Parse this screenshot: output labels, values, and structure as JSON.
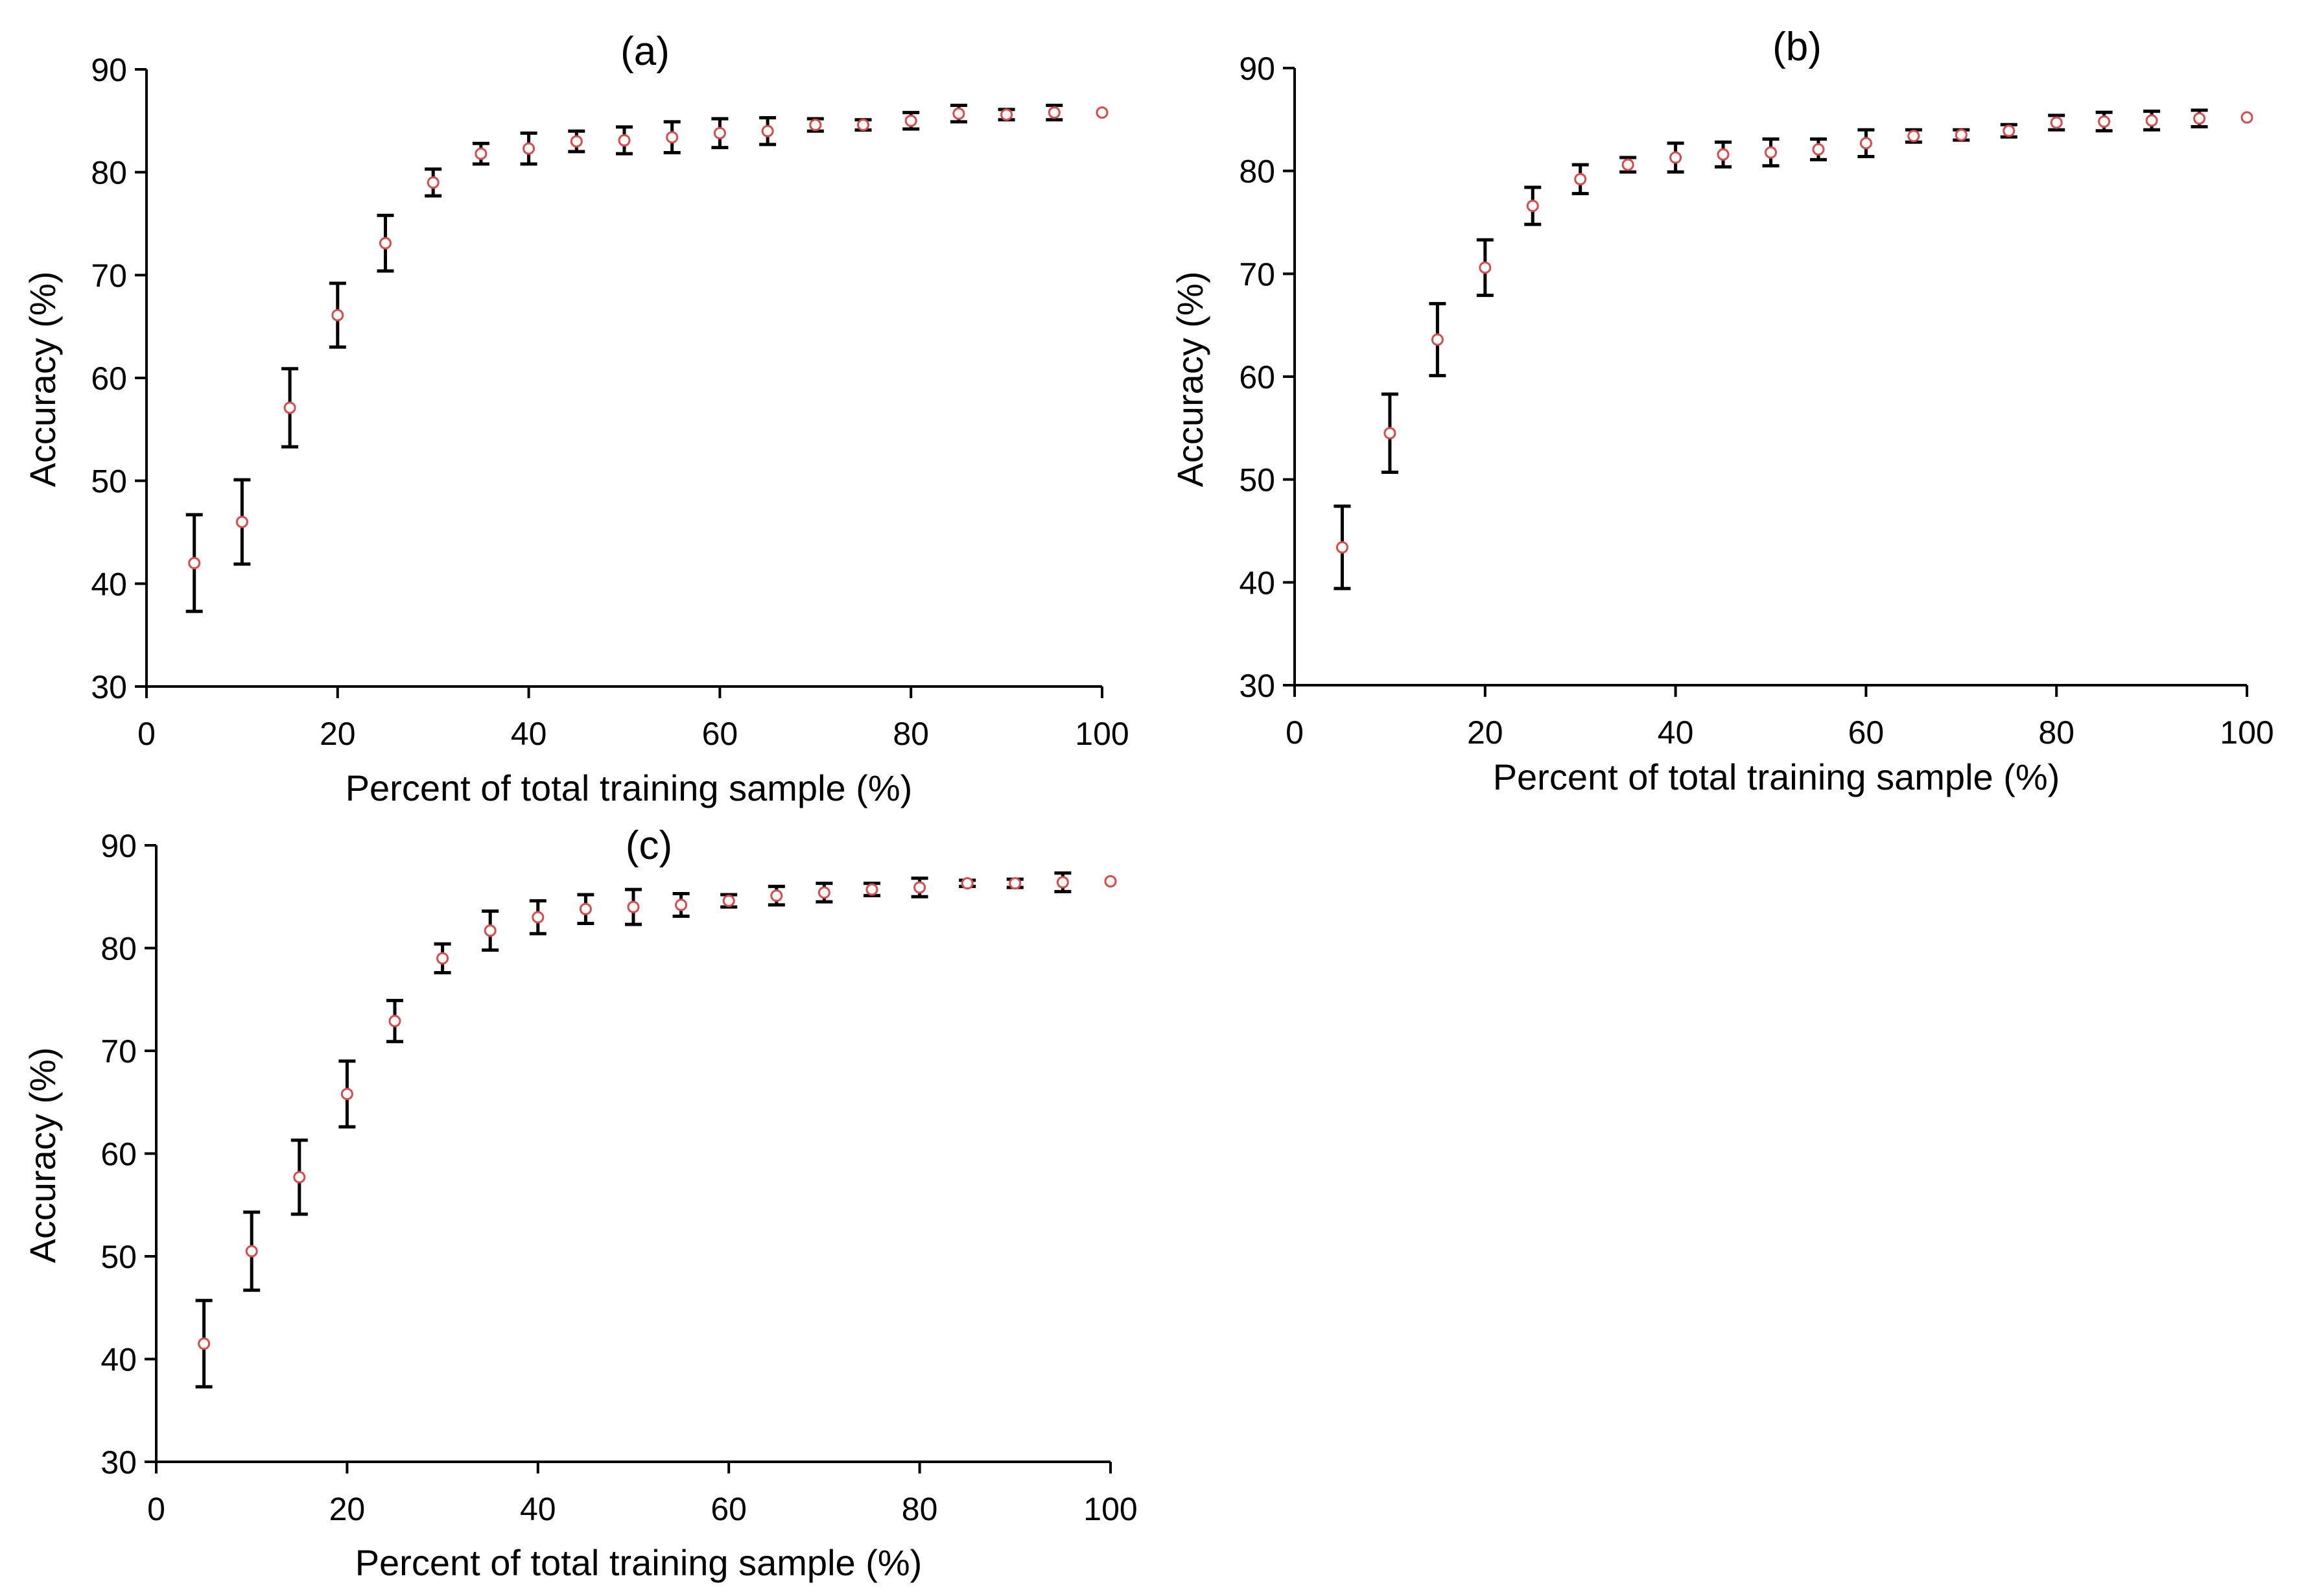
{
  "chart_data": [
    {
      "type": "scatter",
      "panel": "a",
      "title": "(a)",
      "xlabel": "Percent of total training sample (%)",
      "ylabel": "Accuracy (%)",
      "xlim": [
        0,
        100
      ],
      "ylim": [
        30,
        90
      ],
      "xticks": [
        0,
        20,
        40,
        60,
        80,
        100
      ],
      "yticks": [
        30,
        40,
        50,
        60,
        70,
        80,
        90
      ],
      "x": [
        5,
        10,
        15,
        20,
        25,
        30,
        35,
        40,
        45,
        50,
        55,
        60,
        65,
        70,
        75,
        80,
        85,
        90,
        95,
        100
      ],
      "y": [
        42.0,
        46.0,
        57.1,
        66.1,
        73.1,
        79.0,
        81.8,
        82.3,
        83.0,
        83.1,
        83.4,
        83.8,
        84.0,
        84.6,
        84.6,
        85.0,
        85.7,
        85.6,
        85.8,
        85.8
      ],
      "err": [
        4.7,
        4.1,
        3.8,
        3.1,
        2.7,
        1.3,
        1.0,
        1.5,
        1.0,
        1.3,
        1.5,
        1.4,
        1.3,
        0.6,
        0.5,
        0.8,
        0.8,
        0.5,
        0.7,
        0
      ]
    },
    {
      "type": "scatter",
      "panel": "b",
      "title": "(b)",
      "xlabel": "Percent of total training sample (%)",
      "ylabel": "Accuracy (%)",
      "xlim": [
        0,
        100
      ],
      "ylim": [
        30,
        90
      ],
      "xticks": [
        0,
        20,
        40,
        60,
        80,
        100
      ],
      "yticks": [
        30,
        40,
        50,
        60,
        70,
        80,
        90
      ],
      "x": [
        5,
        10,
        15,
        20,
        25,
        30,
        35,
        40,
        45,
        50,
        55,
        60,
        65,
        70,
        75,
        80,
        85,
        90,
        95,
        100
      ],
      "y": [
        43.4,
        54.5,
        63.6,
        70.6,
        76.6,
        79.2,
        80.6,
        81.3,
        81.6,
        81.8,
        82.1,
        82.7,
        83.4,
        83.5,
        83.9,
        84.7,
        84.8,
        84.9,
        85.1,
        85.2
      ],
      "err": [
        4.0,
        3.8,
        3.5,
        2.7,
        1.8,
        1.4,
        0.7,
        1.4,
        1.2,
        1.3,
        1.0,
        1.3,
        0.6,
        0.5,
        0.6,
        0.7,
        0.9,
        0.9,
        0.8,
        0
      ]
    },
    {
      "type": "scatter",
      "panel": "c",
      "title": "(c)",
      "xlabel": "Percent of total training sample (%)",
      "ylabel": "Accuracy (%)",
      "xlim": [
        0,
        100
      ],
      "ylim": [
        30,
        90
      ],
      "xticks": [
        0,
        20,
        40,
        60,
        80,
        100
      ],
      "yticks": [
        30,
        40,
        50,
        60,
        70,
        80,
        90
      ],
      "x": [
        5,
        10,
        15,
        20,
        25,
        30,
        35,
        40,
        45,
        50,
        55,
        60,
        65,
        70,
        75,
        80,
        85,
        90,
        95,
        100
      ],
      "y": [
        41.5,
        50.5,
        57.7,
        65.8,
        72.9,
        79.0,
        81.7,
        83.0,
        83.8,
        84.0,
        84.2,
        84.6,
        85.1,
        85.4,
        85.7,
        85.9,
        86.3,
        86.3,
        86.4,
        86.5
      ],
      "err": [
        4.2,
        3.8,
        3.6,
        3.2,
        2.0,
        1.4,
        1.9,
        1.6,
        1.4,
        1.7,
        1.1,
        0.6,
        0.9,
        0.9,
        0.6,
        0.9,
        0.3,
        0.4,
        0.9,
        0
      ]
    }
  ]
}
